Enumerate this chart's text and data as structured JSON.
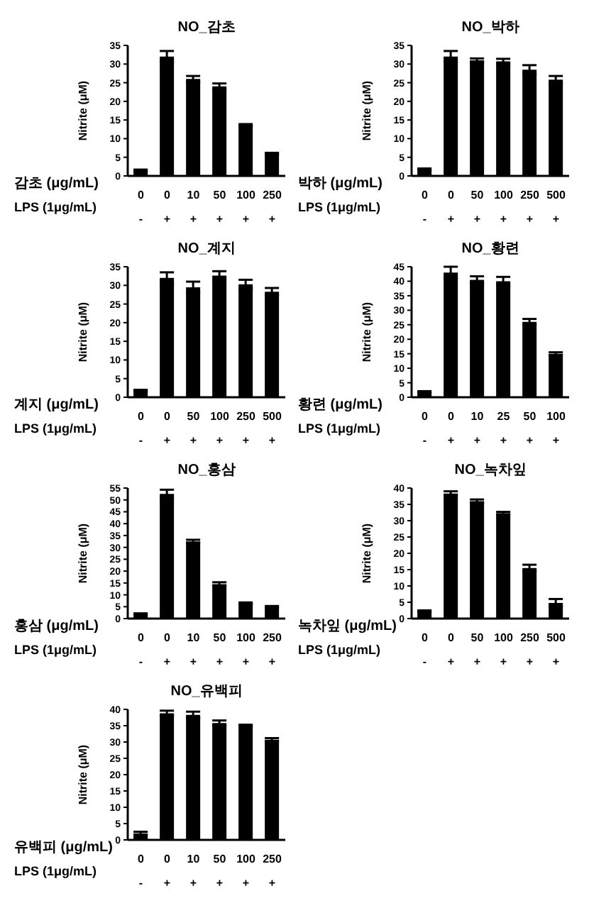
{
  "chart_data": [
    {
      "type": "bar",
      "title": "NO_감초",
      "xlabel": "감초 (μg/mL)\nLPS (1μg/mL)",
      "ylabel": "Nitrite (μM)",
      "categories": [
        "0\n-",
        "0\n+",
        "10\n+",
        "50\n+",
        "100\n+",
        "250\n+"
      ],
      "values": [
        1.5,
        32,
        26,
        24,
        13.7,
        6
      ],
      "errors": [
        0.2,
        1.5,
        0.8,
        0.8,
        0.2,
        0.2
      ],
      "color": "#000000",
      "ylim": [
        0,
        35
      ],
      "yticks": [
        0,
        5,
        10,
        15,
        20,
        25,
        30,
        35
      ]
    },
    {
      "type": "bar",
      "title": "NO_박하",
      "xlabel": "박하 (μg/mL)\nLPS (1μg/mL)",
      "ylabel": "Nitrite (μM)",
      "categories": [
        "0\n-",
        "0\n+",
        "50\n+",
        "100\n+",
        "250\n+",
        "500\n+"
      ],
      "values": [
        1.8,
        32,
        31,
        30.7,
        28.5,
        25.8
      ],
      "errors": [
        0.2,
        1.5,
        0.5,
        0.7,
        1.2,
        1
      ],
      "color": "#000000",
      "ylim": [
        0,
        35
      ],
      "yticks": [
        0,
        5,
        10,
        15,
        20,
        25,
        30,
        35
      ]
    },
    {
      "type": "bar",
      "title": "NO_계지",
      "xlabel": "계지 (μg/mL)\nLPS (1μg/mL)",
      "ylabel": "Nitrite (μM)",
      "categories": [
        "0\n-",
        "0\n+",
        "50\n+",
        "100\n+",
        "250\n+",
        "500\n+"
      ],
      "values": [
        1.8,
        32,
        29.5,
        32.6,
        30.3,
        28.3
      ],
      "errors": [
        0.2,
        1.5,
        1.5,
        1.2,
        1.2,
        1
      ],
      "color": "#000000",
      "ylim": [
        0,
        35
      ],
      "yticks": [
        0,
        5,
        10,
        15,
        20,
        25,
        30,
        35
      ]
    },
    {
      "type": "bar",
      "title": "NO_황련",
      "xlabel": "황련 (μg/mL)\nLPS (1μg/mL)",
      "ylabel": "Nitrite (μM)",
      "categories": [
        "0\n-",
        "0\n+",
        "10\n+",
        "25\n+",
        "50\n+",
        "100\n+"
      ],
      "values": [
        1.8,
        43,
        40.5,
        40,
        26,
        15
      ],
      "errors": [
        0.3,
        2,
        1.2,
        1.5,
        1,
        0.5
      ],
      "color": "#000000",
      "ylim": [
        0,
        45
      ],
      "yticks": [
        0,
        5,
        10,
        15,
        20,
        25,
        30,
        35,
        40,
        45
      ]
    },
    {
      "type": "bar",
      "title": "NO_홍삼",
      "xlabel": "홍삼 (μg/mL)\nLPS (1μg/mL)",
      "ylabel": "Nitrite (μM)",
      "categories": [
        "0\n-",
        "0\n+",
        "10\n+",
        "50\n+",
        "100\n+",
        "250\n+"
      ],
      "values": [
        2,
        52.5,
        32.5,
        14.5,
        6.5,
        5
      ],
      "errors": [
        0.2,
        1.8,
        0.7,
        0.8,
        0.3,
        0.3
      ],
      "color": "#000000",
      "ylim": [
        0,
        55
      ],
      "yticks": [
        0,
        5,
        10,
        15,
        20,
        25,
        30,
        35,
        40,
        45,
        50,
        55
      ]
    },
    {
      "type": "bar",
      "title": "NO_녹차잎",
      "xlabel": "녹차잎 (μg/mL)\nLPS (1μg/mL)",
      "ylabel": "Nitrite (μM)",
      "categories": [
        "0\n-",
        "0\n+",
        "50\n+",
        "100\n+",
        "250\n+",
        "500\n+"
      ],
      "values": [
        2.3,
        38.3,
        36,
        32.3,
        15.5,
        4.8
      ],
      "errors": [
        0.2,
        0.7,
        0.5,
        0.4,
        1,
        1.2
      ],
      "color": "#000000",
      "ylim": [
        0,
        40
      ],
      "yticks": [
        0,
        5,
        10,
        15,
        20,
        25,
        30,
        35,
        40
      ]
    },
    {
      "type": "bar",
      "title": "NO_유백피",
      "xlabel": "유백피 (μg/mL)\nLPS (1μg/mL)",
      "ylabel": "Nitrite (μM)",
      "categories": [
        "0\n-",
        "0\n+",
        "10\n+",
        "50\n+",
        "100\n+",
        "250\n+"
      ],
      "values": [
        2,
        38.8,
        38.3,
        35.8,
        35.1,
        30.7
      ],
      "errors": [
        0.5,
        0.8,
        1,
        0.8,
        0.2,
        0.5
      ],
      "color": "#000000",
      "ylim": [
        0,
        40
      ],
      "yticks": [
        0,
        5,
        10,
        15,
        20,
        25,
        30,
        35,
        40
      ]
    }
  ]
}
